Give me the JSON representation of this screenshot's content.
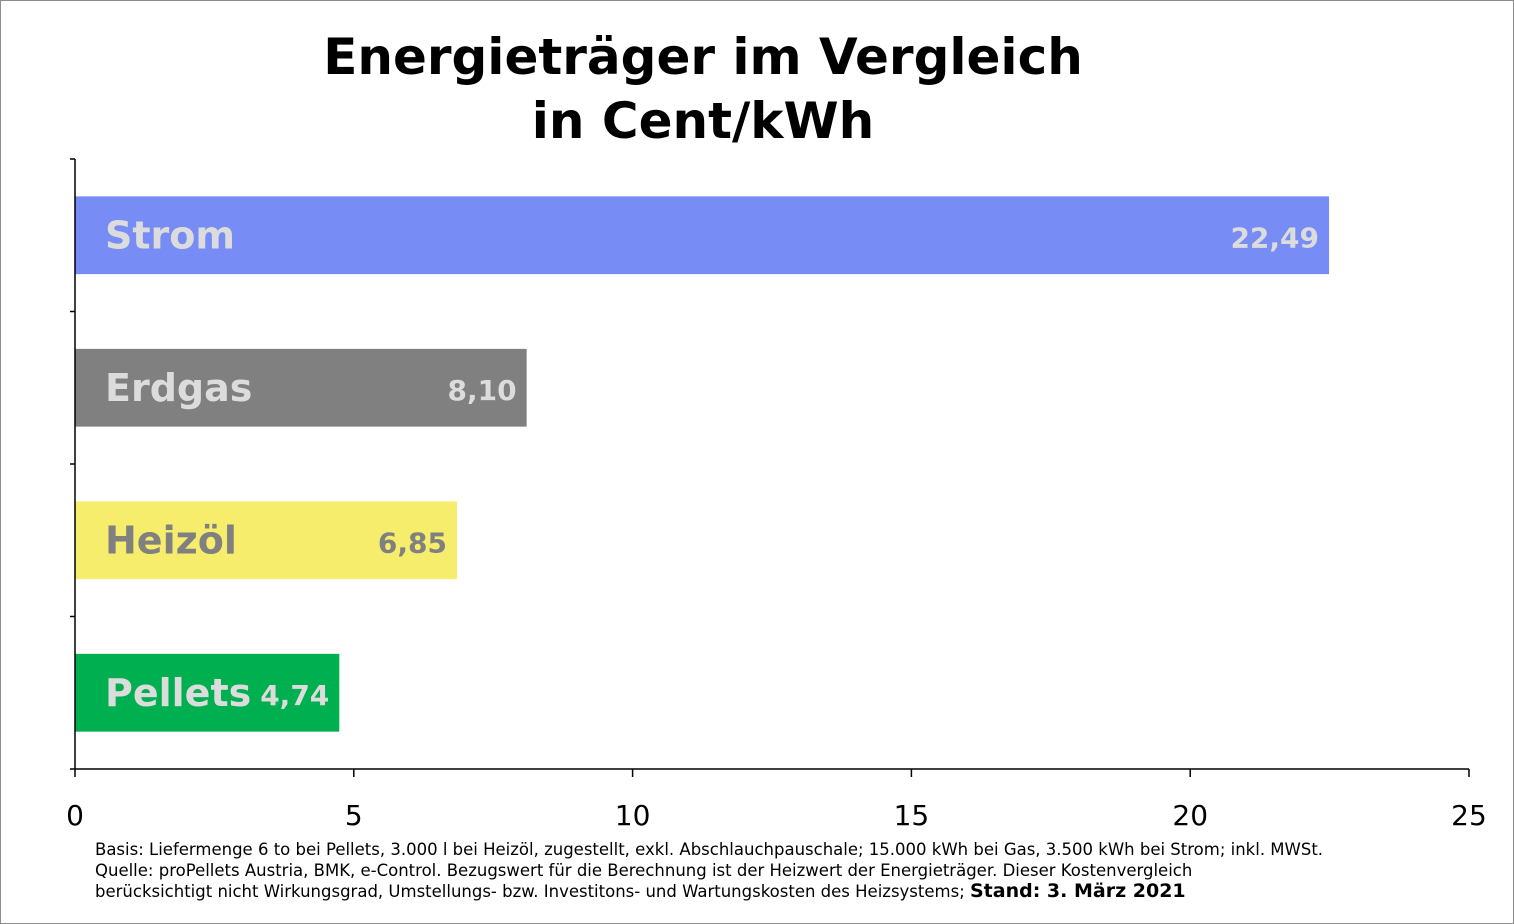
{
  "chart_data": {
    "type": "bar",
    "orientation": "horizontal",
    "title_lines": [
      "Energieträger im Vergleich",
      "in Cent/kWh"
    ],
    "categories": [
      "Strom",
      "Erdgas",
      "Heizöl",
      "Pellets"
    ],
    "values": [
      22.49,
      8.1,
      6.85,
      4.74
    ],
    "value_labels": [
      "22,49",
      "8,10",
      "6,85",
      "4,74"
    ],
    "bar_colors": [
      "#778cf5",
      "#808080",
      "#f5ed6b",
      "#00b050"
    ],
    "label_colors": [
      "#dcdcdc",
      "#dcdcdc",
      "#808080",
      "#dcdcdc"
    ],
    "xlim": [
      0,
      25
    ],
    "xticks": [
      0,
      5,
      10,
      15,
      20,
      25
    ],
    "grid": false,
    "legend": "none"
  },
  "footnote": {
    "line1": "Basis: Liefermenge 6 to bei Pellets, 3.000 l bei Heizöl, zugestellt, exkl. Abschlauchpauschale; 15.000 kWh bei Gas, 3.500 kWh bei Strom; inkl. MWSt.",
    "line2": "Quelle: proPellets Austria, BMK, e-Control. Bezugswert für die Berechnung ist der Heizwert der Energieträger. Dieser Kostenvergleich",
    "line3": "berücksichtigt nicht Wirkungsgrad, Umstellungs- bzw. Investitons- und Wartungskosten des Heizsystems;",
    "stand": "Stand: 3. März 2021"
  }
}
